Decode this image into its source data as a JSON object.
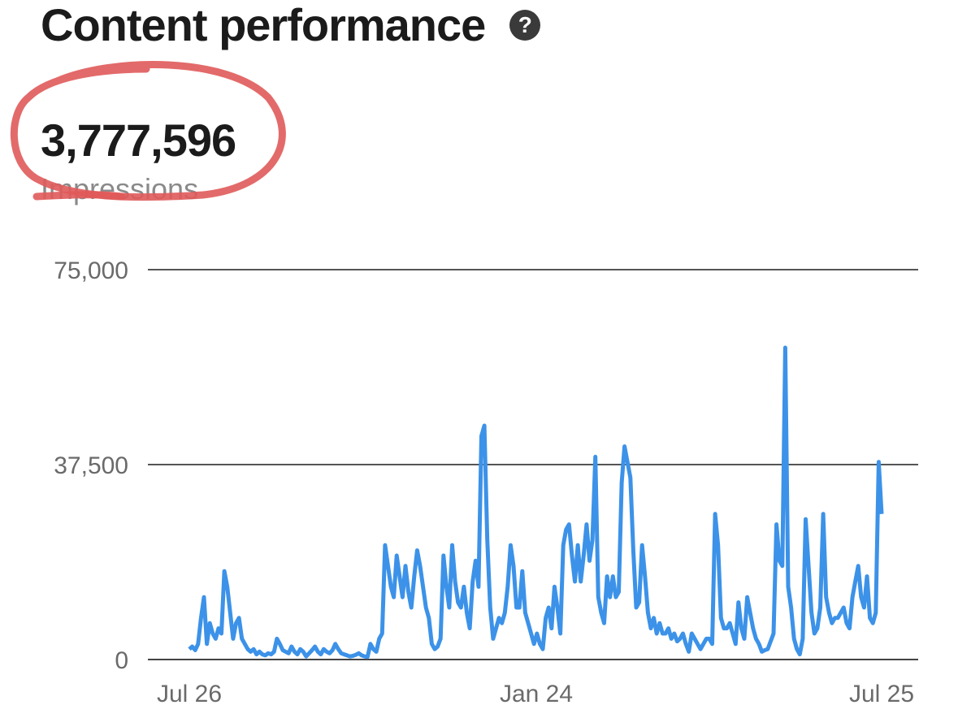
{
  "header": {
    "title": "Content performance",
    "help_icon": "question-circle-icon"
  },
  "metric": {
    "value": "3,777,596",
    "label": "Impressions"
  },
  "chart_data": {
    "type": "line",
    "xlabel": "",
    "ylabel": "",
    "ylim": [
      0,
      75000
    ],
    "y_ticks": [
      "75,000",
      "37,500",
      "0"
    ],
    "y_tick_values": [
      75000,
      37500,
      0
    ],
    "x_tick_labels": [
      "Jul 26",
      "Jan 24",
      "Jul 25"
    ],
    "grid": "horizontal",
    "line_color": "#3c92e8",
    "series": [
      {
        "values": [
          2000,
          2500,
          1800,
          3000,
          8000,
          12000,
          3000,
          7000,
          5000,
          4000,
          6000,
          5000,
          17000,
          14000,
          9000,
          4000,
          7000,
          8000,
          4000,
          3000,
          2000,
          1500,
          2000,
          1000,
          1500,
          1000,
          800,
          1200,
          1000,
          1500,
          4000,
          3000,
          1800,
          1500,
          1200,
          2500,
          1500,
          1000,
          2000,
          1500,
          600,
          1200,
          1800,
          2500,
          1500,
          1000,
          2000,
          1500,
          1200,
          1800,
          3000,
          2000,
          1200,
          1000,
          800,
          600,
          700,
          900,
          1200,
          800,
          600,
          500,
          3000,
          2000,
          1500,
          4000,
          5000,
          22000,
          18000,
          14000,
          12000,
          20000,
          16000,
          12000,
          18000,
          13000,
          10000,
          16000,
          21000,
          18000,
          14000,
          10000,
          8000,
          3000,
          2000,
          2500,
          4000,
          20000,
          14000,
          10000,
          22000,
          15000,
          11000,
          10000,
          14000,
          9000,
          6000,
          15000,
          19000,
          14000,
          43000,
          45000,
          23000,
          10000,
          4000,
          6000,
          8000,
          7000,
          9000,
          14000,
          22000,
          18000,
          10000,
          10000,
          17000,
          9000,
          7000,
          5000,
          3000,
          5000,
          3000,
          2000,
          8000,
          10000,
          6000,
          14000,
          10000,
          5000,
          22000,
          25000,
          26000,
          20000,
          15000,
          22000,
          15000,
          20000,
          26000,
          19000,
          23000,
          39000,
          12000,
          9000,
          7000,
          16000,
          12000,
          16000,
          12000,
          13000,
          34000,
          41000,
          38000,
          35000,
          21000,
          10000,
          11000,
          22000,
          16000,
          9000,
          6000,
          8000,
          5000,
          7000,
          5000,
          5000,
          6000,
          4000,
          5000,
          3500,
          4000,
          5000,
          3000,
          1500,
          5000,
          4000,
          3000,
          2000,
          3000,
          4000,
          4000,
          3000,
          28000,
          22000,
          8000,
          6000,
          6000,
          7000,
          5000,
          3000,
          11000,
          6000,
          4000,
          12000,
          9000,
          6000,
          4000,
          3000,
          1500,
          1800,
          2000,
          3500,
          5000,
          26000,
          19000,
          18000,
          60000,
          14000,
          10000,
          4000,
          2000,
          1000,
          4000,
          27000,
          18000,
          9000,
          5000,
          6000,
          10000,
          28000,
          12000,
          9000,
          7000,
          8000,
          8000,
          9000,
          10000,
          7000,
          6000,
          12000,
          15000,
          18000,
          12000,
          10000,
          16000,
          8000,
          7000,
          9000,
          38000,
          28000
        ]
      }
    ]
  }
}
